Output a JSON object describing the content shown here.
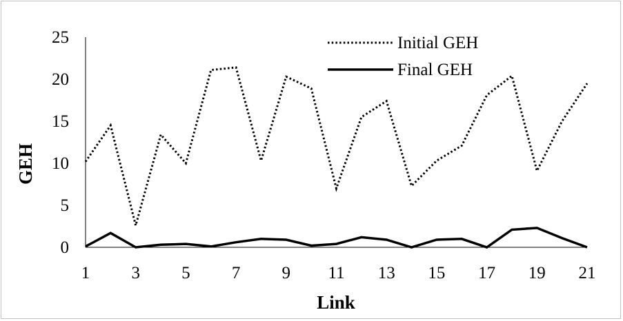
{
  "chart_data": {
    "type": "line",
    "title": "",
    "xlabel": "Link",
    "ylabel": "GEH",
    "x": [
      1,
      2,
      3,
      4,
      5,
      6,
      7,
      8,
      9,
      10,
      11,
      12,
      13,
      14,
      15,
      16,
      17,
      18,
      19,
      20,
      21
    ],
    "x_tick_labels": [
      "1",
      "3",
      "5",
      "7",
      "9",
      "11",
      "13",
      "15",
      "17",
      "19",
      "21"
    ],
    "y_tick_labels": [
      "0",
      "5",
      "10",
      "15",
      "20",
      "25"
    ],
    "ylim": [
      0,
      25
    ],
    "grid": false,
    "legend_position": "top-right",
    "series": [
      {
        "name": "Initial GEH",
        "style": "dotted",
        "color": "#000000",
        "values": [
          10.2,
          14.5,
          2.6,
          13.4,
          10.0,
          21.1,
          21.4,
          10.3,
          20.3,
          18.9,
          7.0,
          15.5,
          17.4,
          7.3,
          10.3,
          12.1,
          18.1,
          20.4,
          9.1,
          15.0,
          19.5
        ]
      },
      {
        "name": "Final GEH",
        "style": "solid",
        "color": "#000000",
        "values": [
          0.1,
          1.7,
          0.0,
          0.3,
          0.4,
          0.1,
          0.6,
          1.0,
          0.9,
          0.2,
          0.4,
          1.2,
          0.9,
          0.0,
          0.9,
          1.0,
          0.0,
          2.1,
          2.3,
          1.1,
          0.0
        ]
      }
    ]
  }
}
